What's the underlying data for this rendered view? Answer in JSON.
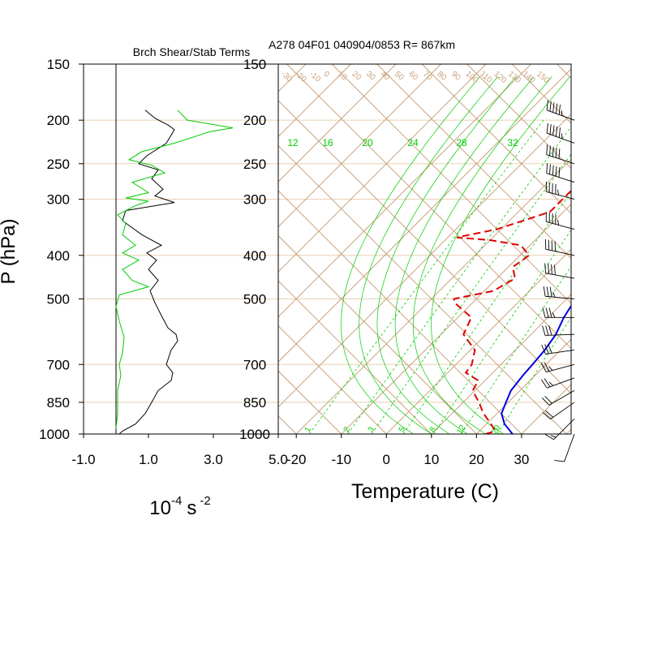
{
  "figure": {
    "left_title": "Brch Shear/Stab Terms",
    "right_title": "A278 04F01 040904/0853 R= 867km"
  },
  "chart_data": [
    {
      "type": "line",
      "title": "Brch Shear/Stab Terms",
      "ylabel": "P (hPa)",
      "xlabel_base": "10",
      "xlabel_exp": "-4",
      "xlabel_unit": "s",
      "xlabel_unit_exp": "-2",
      "xlim": [
        -1.0,
        5.0
      ],
      "xticks": [
        "-1.0",
        "1.0",
        "3.0",
        "5.0"
      ],
      "ylim_hpa": [
        1000,
        150
      ],
      "pressure_levels": [
        "150",
        "200",
        "250",
        "300",
        "400",
        "500",
        "700",
        "850",
        "1000"
      ],
      "colors": {
        "shear": "#000000",
        "stability": "#00cc00",
        "grid": "#e8cfb0"
      },
      "series": [
        {
          "key": "shear",
          "points": [
            [
              0.1,
              1000
            ],
            [
              0.2,
              985
            ],
            [
              0.6,
              950
            ],
            [
              0.9,
              900
            ],
            [
              1.1,
              850
            ],
            [
              1.3,
              800
            ],
            [
              1.7,
              760
            ],
            [
              1.75,
              730
            ],
            [
              1.55,
              700
            ],
            [
              1.7,
              650
            ],
            [
              1.9,
              620
            ],
            [
              1.85,
              600
            ],
            [
              1.6,
              580
            ],
            [
              1.4,
              545
            ],
            [
              1.2,
              510
            ],
            [
              1.05,
              480
            ],
            [
              1.3,
              455
            ],
            [
              1.0,
              430
            ],
            [
              1.25,
              410
            ],
            [
              0.95,
              395
            ],
            [
              1.4,
              380
            ],
            [
              0.8,
              360
            ],
            [
              0.2,
              335
            ],
            [
              0.3,
              318
            ],
            [
              1.8,
              305
            ],
            [
              1.2,
              295
            ],
            [
              1.45,
              285
            ],
            [
              1.1,
              270
            ],
            [
              1.3,
              258
            ],
            [
              0.7,
              250
            ],
            [
              0.95,
              240
            ],
            [
              1.55,
              225
            ],
            [
              1.8,
              210
            ],
            [
              1.6,
              205
            ],
            [
              1.2,
              198
            ],
            [
              0.9,
              190
            ]
          ]
        },
        {
          "key": "stability",
          "points": [
            [
              0.0,
              970
            ],
            [
              0.05,
              900
            ],
            [
              0.05,
              800
            ],
            [
              0.15,
              740
            ],
            [
              0.1,
              700
            ],
            [
              0.2,
              660
            ],
            [
              0.25,
              610
            ],
            [
              0.1,
              560
            ],
            [
              0.0,
              520
            ],
            [
              0.1,
              490
            ],
            [
              1.0,
              470
            ],
            [
              0.5,
              455
            ],
            [
              0.2,
              430
            ],
            [
              0.7,
              410
            ],
            [
              0.2,
              395
            ],
            [
              0.6,
              380
            ],
            [
              0.2,
              360
            ],
            [
              0.3,
              340
            ],
            [
              0.05,
              325
            ],
            [
              0.6,
              310
            ],
            [
              1.0,
              303
            ],
            [
              0.3,
              298
            ],
            [
              1.0,
              290
            ],
            [
              0.5,
              275
            ],
            [
              1.5,
              262
            ],
            [
              1.1,
              252
            ],
            [
              0.4,
              245
            ],
            [
              0.8,
              235
            ],
            [
              1.8,
              225
            ],
            [
              2.9,
              212
            ],
            [
              3.6,
              208
            ],
            [
              2.2,
              200
            ],
            [
              1.9,
              190
            ]
          ]
        }
      ]
    },
    {
      "type": "line",
      "title": "A278 04F01 040904/0853 R= 867km",
      "xlabel": "Temperature (C)",
      "xticks": [
        "-20",
        "-10",
        "0",
        "10",
        "20",
        "30"
      ],
      "pressure_levels": [
        "150",
        "200",
        "250",
        "300",
        "400",
        "500",
        "700",
        "850",
        "1000"
      ],
      "colors": {
        "grid": "#c9a27d",
        "mixing_ratio": "#00cc00",
        "dewpoint": "#e00000",
        "temperature": "#0000e0",
        "wind": "#000000"
      },
      "isotherm_labels": [
        "-30",
        "-20",
        "-10",
        "0",
        "10",
        "20",
        "30",
        "40",
        "50",
        "60",
        "70",
        "80",
        "90",
        "100",
        "110",
        "120",
        "130",
        "140",
        "150"
      ],
      "mixing_ratio_labels": [
        "12",
        "16",
        "20",
        "24",
        "28",
        "32"
      ],
      "mixing_ratio_small_labels": [
        "1",
        "2",
        "3",
        "5",
        "8",
        "12",
        "20"
      ],
      "series": [
        {
          "key": "temperature",
          "style": "solid",
          "points": [
            [
              28,
              1000
            ],
            [
              24,
              950
            ],
            [
              21,
              900
            ],
            [
              19.5,
              850
            ],
            [
              18,
              800
            ],
            [
              17.3,
              740
            ],
            [
              17,
              700
            ],
            [
              16.5,
              650
            ],
            [
              15.5,
              600
            ],
            [
              13.5,
              550
            ],
            [
              12,
              500
            ],
            [
              10.5,
              450
            ],
            [
              9,
              400
            ],
            [
              7.5,
              360
            ],
            [
              5,
              340
            ],
            [
              2.5,
              320
            ],
            [
              0.5,
              300
            ],
            [
              -1.5,
              280
            ],
            [
              -3,
              260
            ],
            [
              -4.5,
              250
            ],
            [
              -6,
              240
            ],
            [
              -8,
              225
            ],
            [
              -10,
              210
            ],
            [
              -12,
              200
            ],
            [
              -14,
              190
            ],
            [
              -15,
              185
            ]
          ]
        },
        {
          "key": "dewpoint",
          "style": "dashed",
          "points": [
            [
              22,
              1000
            ],
            [
              23.5,
              985
            ],
            [
              21,
              950
            ],
            [
              17,
              900
            ],
            [
              13.5,
              850
            ],
            [
              9.5,
              800
            ],
            [
              8.5,
              760
            ],
            [
              4,
              730
            ],
            [
              3.5,
              700
            ],
            [
              1,
              650
            ],
            [
              -5,
              600
            ],
            [
              -7,
              550
            ],
            [
              -14,
              510
            ],
            [
              -15,
              500
            ],
            [
              -8,
              480
            ],
            [
              -6,
              450
            ],
            [
              -9,
              425
            ],
            [
              -8,
              400
            ],
            [
              -12,
              380
            ],
            [
              -20,
              370
            ],
            [
              -28,
              365
            ],
            [
              -21,
              350
            ],
            [
              -17,
              335
            ],
            [
              -13,
              320
            ],
            [
              -13,
              300
            ],
            [
              -13,
              280
            ],
            [
              -15,
              260
            ],
            [
              -20,
              230
            ],
            [
              -24,
              210
            ]
          ]
        }
      ],
      "wind_barbs": [
        {
          "p": 1000,
          "dir": 200,
          "kt": 10
        },
        {
          "p": 925,
          "dir": 225,
          "kt": 15
        },
        {
          "p": 850,
          "dir": 235,
          "kt": 20
        },
        {
          "p": 800,
          "dir": 240,
          "kt": 20
        },
        {
          "p": 750,
          "dir": 250,
          "kt": 25
        },
        {
          "p": 700,
          "dir": 255,
          "kt": 25
        },
        {
          "p": 650,
          "dir": 262,
          "kt": 30
        },
        {
          "p": 600,
          "dir": 268,
          "kt": 30
        },
        {
          "p": 550,
          "dir": 270,
          "kt": 35
        },
        {
          "p": 500,
          "dir": 275,
          "kt": 35
        },
        {
          "p": 450,
          "dir": 280,
          "kt": 40
        },
        {
          "p": 400,
          "dir": 282,
          "kt": 40
        },
        {
          "p": 350,
          "dir": 285,
          "kt": 45
        },
        {
          "p": 300,
          "dir": 285,
          "kt": 45
        },
        {
          "p": 275,
          "dir": 288,
          "kt": 50
        },
        {
          "p": 250,
          "dir": 288,
          "kt": 50
        },
        {
          "p": 225,
          "dir": 290,
          "kt": 55
        },
        {
          "p": 200,
          "dir": 290,
          "kt": 55
        }
      ]
    }
  ]
}
